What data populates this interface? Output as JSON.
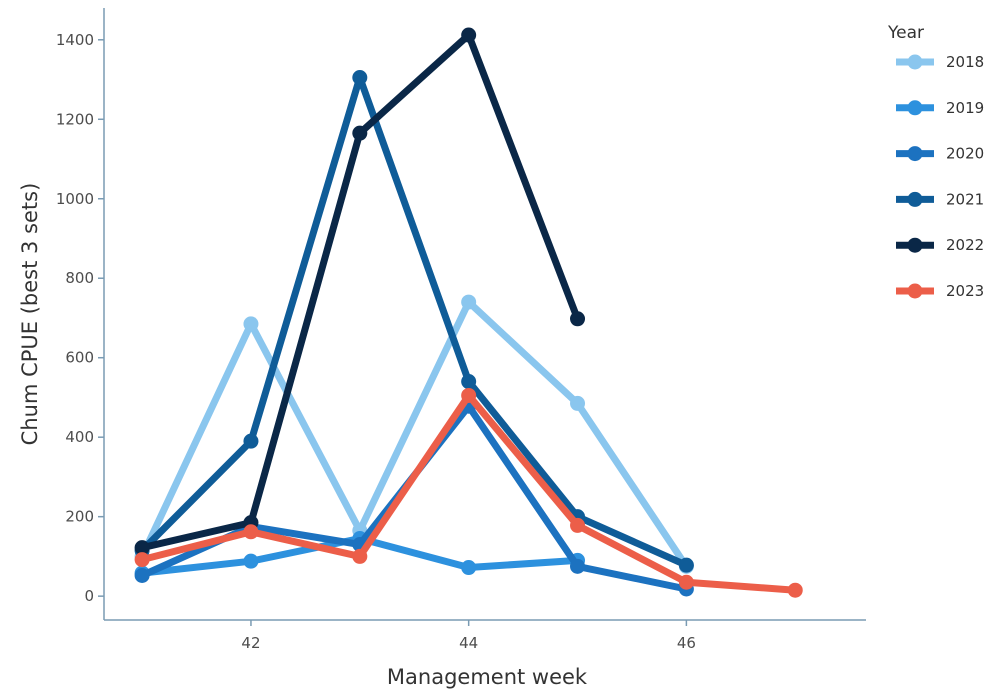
{
  "chart_data": {
    "type": "line",
    "xlabel": "Management week",
    "ylabel": "Chum CPUE (best 3 sets)",
    "xlim": [
      40.65,
      47.65
    ],
    "ylim": [
      -60,
      1480
    ],
    "xticks": [
      42,
      44,
      46
    ],
    "yticks": [
      0,
      200,
      400,
      600,
      800,
      1000,
      1200,
      1400
    ],
    "grid": false,
    "legend": {
      "title": "Year",
      "placement": "right"
    },
    "series": [
      {
        "name": "2018",
        "color": "#8ac6ee",
        "x": [
          41,
          42,
          43,
          44,
          45,
          46
        ],
        "y": [
          100,
          685,
          165,
          740,
          485,
          75
        ]
      },
      {
        "name": "2019",
        "color": "#2d91de",
        "x": [
          41,
          42,
          43,
          44,
          45
        ],
        "y": [
          58,
          88,
          145,
          72,
          90
        ]
      },
      {
        "name": "2020",
        "color": "#1c72c0",
        "x": [
          41,
          42,
          43,
          44,
          45,
          46
        ],
        "y": [
          52,
          175,
          130,
          478,
          75,
          18
        ]
      },
      {
        "name": "2021",
        "color": "#0f5c98",
        "x": [
          41,
          42,
          43,
          44,
          45,
          46
        ],
        "y": [
          115,
          390,
          1305,
          540,
          200,
          78
        ]
      },
      {
        "name": "2022",
        "color": "#0a2747",
        "x": [
          41,
          42,
          43,
          44,
          45
        ],
        "y": [
          122,
          185,
          1165,
          1412,
          698
        ]
      },
      {
        "name": "2023",
        "color": "#ec5e49",
        "x": [
          41,
          42,
          43,
          44,
          45,
          46,
          47
        ],
        "y": [
          92,
          162,
          100,
          505,
          178,
          35,
          15
        ]
      }
    ]
  }
}
